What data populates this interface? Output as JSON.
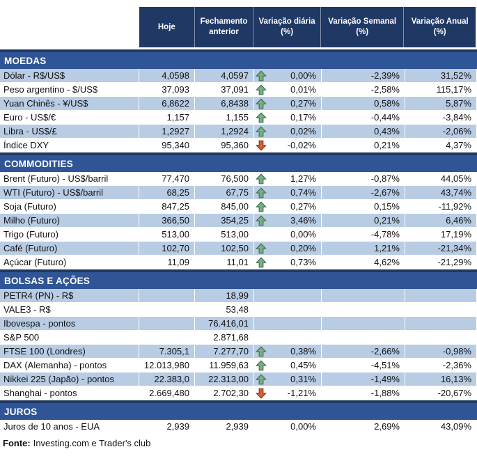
{
  "header": {
    "columns": [
      "Hoje",
      "Fechamento anterior",
      "Variação diária (%)",
      "Variação Semanal (%)",
      "Variação Anual (%)"
    ]
  },
  "sections": [
    {
      "title": "MOEDAS",
      "zebra_start": "blue",
      "rows": [
        {
          "label": "Dólar - R$/US$",
          "hoje": "4,0598",
          "fechamento": "4,0597",
          "arrow": "up",
          "diaria": "0,00%",
          "semanal": "-2,39%",
          "anual": "31,52%"
        },
        {
          "label": "Peso argentino - $/US$",
          "hoje": "37,093",
          "fechamento": "37,091",
          "arrow": "up",
          "diaria": "0,01%",
          "semanal": "-2,58%",
          "anual": "115,17%"
        },
        {
          "label": "Yuan Chinês - ¥/US$",
          "hoje": "6,8622",
          "fechamento": "6,8438",
          "arrow": "up",
          "diaria": "0,27%",
          "semanal": "0,58%",
          "anual": "5,87%"
        },
        {
          "label": "Euro - US$/€",
          "hoje": "1,157",
          "fechamento": "1,155",
          "arrow": "up",
          "diaria": "0,17%",
          "semanal": "-0,44%",
          "anual": "-3,84%"
        },
        {
          "label": "Libra - US$/£",
          "hoje": "1,2927",
          "fechamento": "1,2924",
          "arrow": "up",
          "diaria": "0,02%",
          "semanal": "0,43%",
          "anual": "-2,06%"
        },
        {
          "label": "Índice DXY",
          "hoje": "95,340",
          "fechamento": "95,360",
          "arrow": "down",
          "diaria": "-0,02%",
          "semanal": "0,21%",
          "anual": "4,37%"
        }
      ]
    },
    {
      "title": "COMMODITIES",
      "zebra_start": "white",
      "rows": [
        {
          "label": "Brent (Futuro) - US$/barril",
          "hoje": "77,470",
          "fechamento": "76,500",
          "arrow": "up",
          "diaria": "1,27%",
          "semanal": "-0,87%",
          "anual": "44,05%"
        },
        {
          "label": "WTI (Futuro) - US$/barril",
          "hoje": "68,25",
          "fechamento": "67,75",
          "arrow": "up",
          "diaria": "0,74%",
          "semanal": "-2,67%",
          "anual": "43,74%"
        },
        {
          "label": "Soja (Futuro)",
          "hoje": "847,25",
          "fechamento": "845,00",
          "arrow": "up",
          "diaria": "0,27%",
          "semanal": "0,15%",
          "anual": "-11,92%"
        },
        {
          "label": "Milho (Futuro)",
          "hoje": "366,50",
          "fechamento": "354,25",
          "arrow": "up",
          "diaria": "3,46%",
          "semanal": "0,21%",
          "anual": "6,46%"
        },
        {
          "label": "Trigo (Futuro)",
          "hoje": "513,00",
          "fechamento": "513,00",
          "arrow": "none",
          "diaria": "0,00%",
          "semanal": "-4,78%",
          "anual": "17,19%"
        },
        {
          "label": "Café (Futuro)",
          "hoje": "102,70",
          "fechamento": "102,50",
          "arrow": "up",
          "diaria": "0,20%",
          "semanal": "1,21%",
          "anual": "-21,34%"
        },
        {
          "label": "Açúcar (Futuro)",
          "hoje": "11,09",
          "fechamento": "11,01",
          "arrow": "up",
          "diaria": "0,73%",
          "semanal": "4,62%",
          "anual": "-21,29%"
        }
      ]
    },
    {
      "title": "BOLSAS E AÇÕES",
      "zebra_start": "blue",
      "rows": [
        {
          "label": "PETR4 (PN) - R$",
          "hoje": "",
          "fechamento": "18,99",
          "arrow": "none",
          "diaria": "",
          "semanal": "",
          "anual": ""
        },
        {
          "label": "VALE3 - R$",
          "hoje": "",
          "fechamento": "53,48",
          "arrow": "none",
          "diaria": "",
          "semanal": "",
          "anual": ""
        },
        {
          "label": "Ibovespa - pontos",
          "hoje": "",
          "fechamento": "76.416,01",
          "arrow": "none",
          "diaria": "",
          "semanal": "",
          "anual": ""
        },
        {
          "label": "S&P 500",
          "hoje": "",
          "fechamento": "2.871,68",
          "arrow": "none",
          "diaria": "",
          "semanal": "",
          "anual": ""
        },
        {
          "label": "FTSE 100 (Londres)",
          "hoje": "7.305,1",
          "fechamento": "7.277,70",
          "arrow": "up",
          "diaria": "0,38%",
          "semanal": "-2,66%",
          "anual": "-0,98%"
        },
        {
          "label": "DAX (Alemanha) - pontos",
          "hoje": "12.013,980",
          "fechamento": "11.959,63",
          "arrow": "up",
          "diaria": "0,45%",
          "semanal": "-4,51%",
          "anual": "-2,36%"
        },
        {
          "label": "Nikkei 225 (Japão) - pontos",
          "hoje": "22.383,0",
          "fechamento": "22.313,00",
          "arrow": "up",
          "diaria": "0,31%",
          "semanal": "-1,49%",
          "anual": "16,13%"
        },
        {
          "label": "Shanghai - pontos",
          "hoje": "2.669,480",
          "fechamento": "2.702,30",
          "arrow": "down",
          "diaria": "-1,21%",
          "semanal": "-1,88%",
          "anual": "-20,67%"
        }
      ]
    },
    {
      "title": "JUROS",
      "zebra_start": "white",
      "rows": [
        {
          "label": "Juros de 10 anos - EUA",
          "hoje": "2,939",
          "fechamento": "2,939",
          "arrow": "none",
          "diaria": "0,00%",
          "semanal": "2,69%",
          "anual": "43,09%"
        }
      ]
    }
  ],
  "footer": {
    "label": "Fonte:",
    "text": "Investing.com e Trader's club"
  },
  "colors": {
    "header_bg": "#1F3864",
    "section_bg": "#2F5597",
    "row_alt": "#B8CCE4",
    "up_arrow_fill": "#7AAE88",
    "up_arrow_stroke": "#44704F",
    "down_arrow_fill": "#D55E3B",
    "down_arrow_stroke": "#8E3A22"
  },
  "chart_data": {
    "type": "table",
    "columns": [
      "",
      "Hoje",
      "Fechamento anterior",
      "Variação diária (%)",
      "Variação Semanal (%)",
      "Variação Anual (%)"
    ],
    "rows": [
      [
        "MOEDAS",
        "",
        "",
        "",
        "",
        ""
      ],
      [
        "Dólar - R$/US$",
        "4,0598",
        "4,0597",
        "0,00%",
        "-2,39%",
        "31,52%"
      ],
      [
        "Peso argentino - $/US$",
        "37,093",
        "37,091",
        "0,01%",
        "-2,58%",
        "115,17%"
      ],
      [
        "Yuan Chinês - ¥/US$",
        "6,8622",
        "6,8438",
        "0,27%",
        "0,58%",
        "5,87%"
      ],
      [
        "Euro - US$/€",
        "1,157",
        "1,155",
        "0,17%",
        "-0,44%",
        "-3,84%"
      ],
      [
        "Libra - US$/£",
        "1,2927",
        "1,2924",
        "0,02%",
        "0,43%",
        "-2,06%"
      ],
      [
        "Índice DXY",
        "95,340",
        "95,360",
        "-0,02%",
        "0,21%",
        "4,37%"
      ],
      [
        "COMMODITIES",
        "",
        "",
        "",
        "",
        ""
      ],
      [
        "Brent (Futuro) - US$/barril",
        "77,470",
        "76,500",
        "1,27%",
        "-0,87%",
        "44,05%"
      ],
      [
        "WTI (Futuro) - US$/barril",
        "68,25",
        "67,75",
        "0,74%",
        "-2,67%",
        "43,74%"
      ],
      [
        "Soja (Futuro)",
        "847,25",
        "845,00",
        "0,27%",
        "0,15%",
        "-11,92%"
      ],
      [
        "Milho (Futuro)",
        "366,50",
        "354,25",
        "3,46%",
        "0,21%",
        "6,46%"
      ],
      [
        "Trigo (Futuro)",
        "513,00",
        "513,00",
        "0,00%",
        "-4,78%",
        "17,19%"
      ],
      [
        "Café (Futuro)",
        "102,70",
        "102,50",
        "0,20%",
        "1,21%",
        "-21,34%"
      ],
      [
        "Açúcar (Futuro)",
        "11,09",
        "11,01",
        "0,73%",
        "4,62%",
        "-21,29%"
      ],
      [
        "BOLSAS E AÇÕES",
        "",
        "",
        "",
        "",
        ""
      ],
      [
        "PETR4 (PN) - R$",
        "",
        "18,99",
        "",
        "",
        ""
      ],
      [
        "VALE3 - R$",
        "",
        "53,48",
        "",
        "",
        ""
      ],
      [
        "Ibovespa - pontos",
        "",
        "76.416,01",
        "",
        "",
        ""
      ],
      [
        "S&P 500",
        "",
        "2.871,68",
        "",
        "",
        ""
      ],
      [
        "FTSE 100 (Londres)",
        "7.305,1",
        "7.277,70",
        "0,38%",
        "-2,66%",
        "-0,98%"
      ],
      [
        "DAX (Alemanha) - pontos",
        "12.013,980",
        "11.959,63",
        "0,45%",
        "-4,51%",
        "-2,36%"
      ],
      [
        "Nikkei 225 (Japão) - pontos",
        "22.383,0",
        "22.313,00",
        "0,31%",
        "-1,49%",
        "16,13%"
      ],
      [
        "Shanghai - pontos",
        "2.669,480",
        "2.702,30",
        "-1,21%",
        "-1,88%",
        "-20,67%"
      ],
      [
        "JUROS",
        "",
        "",
        "",
        "",
        ""
      ],
      [
        "Juros de 10 anos - EUA",
        "2,939",
        "2,939",
        "0,00%",
        "2,69%",
        "43,09%"
      ]
    ],
    "title": "",
    "legend": "arrows: green up = daily gain, red down = daily loss",
    "source": "Fonte: Investing.com e Trader's club"
  }
}
